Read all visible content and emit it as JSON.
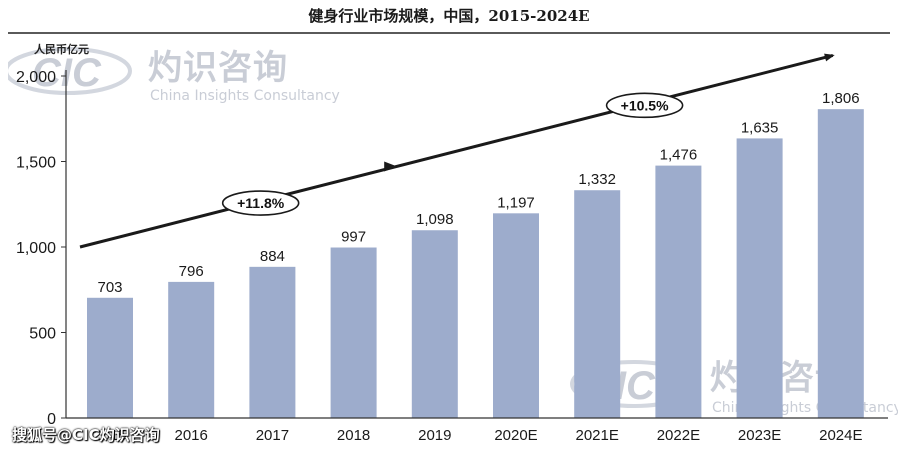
{
  "chart_data": {
    "type": "bar",
    "title": "健身行业市场规模，中国，2015-2024E",
    "unit_label": "人民币亿元",
    "categories": [
      "2015",
      "2016",
      "2017",
      "2018",
      "2019",
      "2020E",
      "2021E",
      "2022E",
      "2023E",
      "2024E"
    ],
    "values": [
      703,
      796,
      884,
      997,
      1098,
      1197,
      1332,
      1476,
      1635,
      1806
    ],
    "value_labels": [
      "703",
      "796",
      "884",
      "997",
      "1,098",
      "1,197",
      "1,332",
      "1,476",
      "1,635",
      "1,806"
    ],
    "ylim": [
      0,
      2000
    ],
    "yticks": [
      0,
      500,
      1000,
      1500,
      2000
    ],
    "ytick_labels": [
      "0",
      "500",
      "1,000",
      "1,500",
      "2,000"
    ],
    "bar_color": "#9daccc",
    "grid": false,
    "annotations": [
      {
        "text": "+11.8%",
        "from": "2015",
        "to": "2019"
      },
      {
        "text": "+10.5%",
        "from": "2019",
        "to": "2024E"
      }
    ]
  },
  "watermark": {
    "logo": "CIC",
    "name_cn": "灼识咨询",
    "name_en": "China Insights Consultancy"
  },
  "caption": "搜狐号@CIC灼识咨询",
  "colors": {
    "bar": "#9daccc",
    "axis": "#333333",
    "arrow": "#1a1a1a",
    "watermark": "#c9cdd6"
  }
}
